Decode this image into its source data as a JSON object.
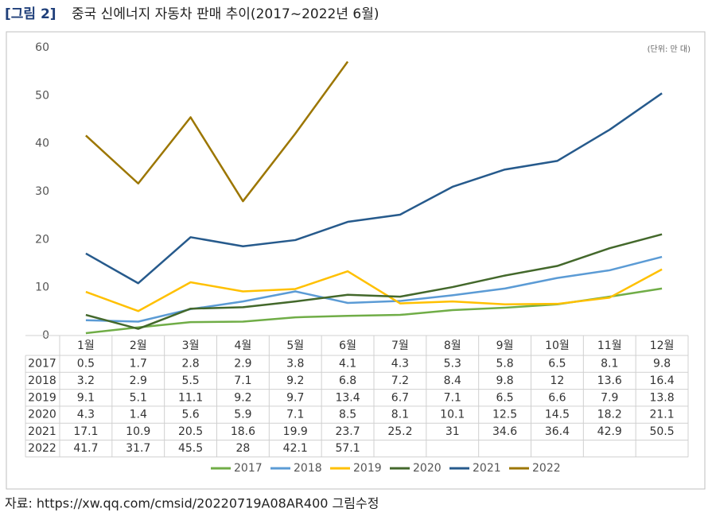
{
  "chart_data": {
    "type": "line",
    "figure_label": "[그림 2]",
    "title": "중국 신에너지 자동차 판매 추이(2017~2022년 6월)",
    "unit": "(단위: 만 대)",
    "source": "자료: https://xw.qq.com/cmsid/20220719A08AR400 그림수정",
    "categories": [
      "1월",
      "2월",
      "3월",
      "4월",
      "5월",
      "6월",
      "7월",
      "8월",
      "9월",
      "10월",
      "11월",
      "12월"
    ],
    "series": [
      {
        "name": "2017",
        "color": "#70ad47",
        "values": [
          0.5,
          1.7,
          2.8,
          2.9,
          3.8,
          4.1,
          4.3,
          5.3,
          5.8,
          6.5,
          8.1,
          9.8
        ]
      },
      {
        "name": "2018",
        "color": "#5b9bd5",
        "values": [
          3.2,
          2.9,
          5.5,
          7.1,
          9.2,
          6.8,
          7.2,
          8.4,
          9.8,
          12,
          13.6,
          16.4
        ]
      },
      {
        "name": "2019",
        "color": "#ffc000",
        "values": [
          9.1,
          5.1,
          11.1,
          9.2,
          9.7,
          13.4,
          6.7,
          7.1,
          6.5,
          6.6,
          7.9,
          13.8
        ]
      },
      {
        "name": "2020",
        "color": "#43682b",
        "values": [
          4.3,
          1.4,
          5.6,
          5.9,
          7.1,
          8.5,
          8.1,
          10.1,
          12.5,
          14.5,
          18.2,
          21.1
        ]
      },
      {
        "name": "2021",
        "color": "#265a8c",
        "values": [
          17.1,
          10.9,
          20.5,
          18.6,
          19.9,
          23.7,
          25.2,
          31,
          34.6,
          36.4,
          42.9,
          50.5
        ]
      },
      {
        "name": "2022",
        "color": "#9c7600",
        "values": [
          41.7,
          31.7,
          45.5,
          28,
          42.1,
          57.1,
          null,
          null,
          null,
          null,
          null,
          null
        ]
      }
    ],
    "ylim": [
      0,
      60
    ],
    "yticks": [
      0,
      10,
      20,
      30,
      40,
      50,
      60
    ],
    "grid": false,
    "legend": "bottom"
  }
}
